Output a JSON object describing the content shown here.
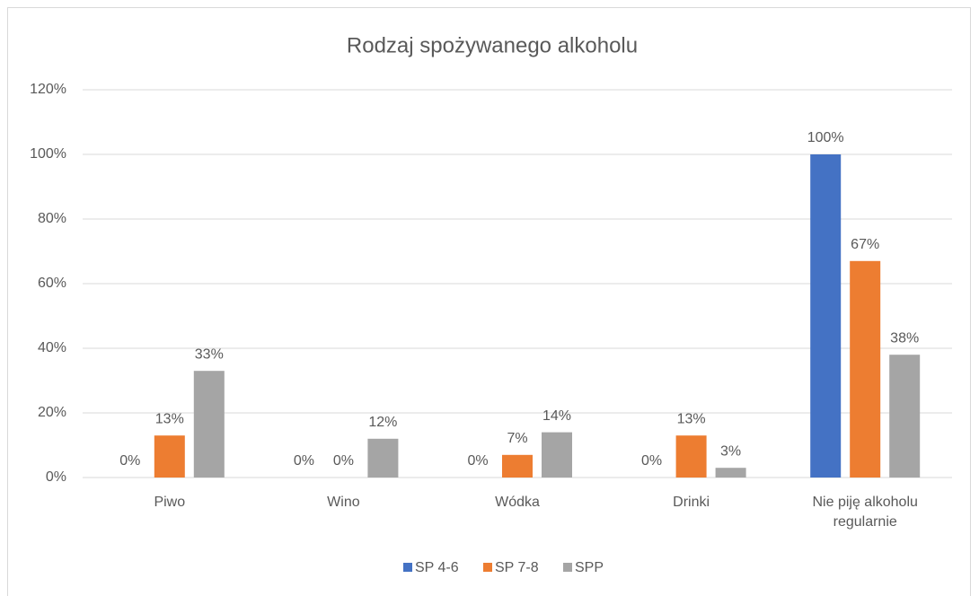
{
  "chart_data": {
    "type": "bar",
    "title": "Rodzaj spożywanego alkoholu",
    "categories": [
      "Piwo",
      "Wino",
      "Wódka",
      "Drinki",
      "Nie piję alkoholu regularnie"
    ],
    "series": [
      {
        "name": "SP 4-6",
        "color": "#4472c4",
        "values": [
          0,
          0,
          0,
          0,
          100
        ],
        "value_labels": [
          "0%",
          "0%",
          "0%",
          "0%",
          "100%"
        ]
      },
      {
        "name": "SP 7-8",
        "color": "#ed7d31",
        "values": [
          13,
          0,
          7,
          13,
          67
        ],
        "value_labels": [
          "13%",
          "0%",
          "7%",
          "13%",
          "67%"
        ]
      },
      {
        "name": "SPP",
        "color": "#a5a5a5",
        "values": [
          33,
          12,
          14,
          3,
          38
        ],
        "value_labels": [
          "33%",
          "12%",
          "14%",
          "3%",
          "38%"
        ]
      }
    ],
    "ylim": [
      0,
      120
    ],
    "yticks": [
      {
        "value": 0,
        "label": "0%"
      },
      {
        "value": 20,
        "label": "20%"
      },
      {
        "value": 40,
        "label": "40%"
      },
      {
        "value": 60,
        "label": "60%"
      },
      {
        "value": 80,
        "label": "80%"
      },
      {
        "value": 100,
        "label": "100%"
      },
      {
        "value": 120,
        "label": "120%"
      }
    ],
    "grid": true,
    "legend": "bottom"
  }
}
